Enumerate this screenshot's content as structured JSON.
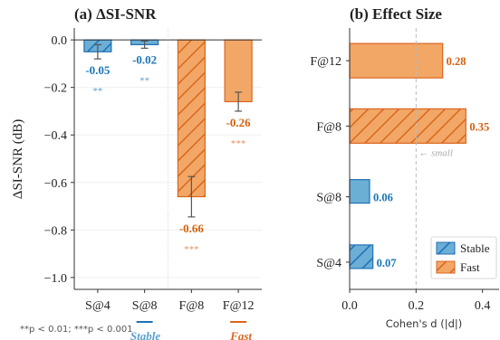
{
  "colors": {
    "stable_fill": "#6baed6",
    "stable_edge": "#2171b5",
    "stable_text": "#1a75b8",
    "stable_sig": "#5aa0d0",
    "fast_fill": "#f2a766",
    "fast_edge": "#d9661f",
    "fast_text": "#d35f0c",
    "fast_sig": "#e8915a",
    "annotation_gray": "#aaaaaa"
  },
  "chart_data": [
    {
      "type": "bar",
      "panel": "(a)",
      "title": "(a)  ΔSI-SNR",
      "xlabel": "",
      "ylabel": "ΔSI-SNR (dB)",
      "ylim": [
        -1.05,
        0.05
      ],
      "yticks": [
        0.0,
        -0.2,
        -0.4,
        -0.6,
        -0.8,
        -1.0
      ],
      "ytick_labels": [
        "0.0",
        "−0.2",
        "−0.4",
        "−0.6",
        "−0.8",
        "−1.0"
      ],
      "categories": [
        "S@4",
        "S@8",
        "F@8",
        "F@12"
      ],
      "values": [
        -0.05,
        -0.02,
        -0.66,
        -0.26
      ],
      "errors": [
        0.03,
        0.015,
        0.085,
        0.04
      ],
      "value_labels": [
        "-0.05",
        "-0.02",
        "-0.66",
        "-0.26"
      ],
      "significance": [
        "**",
        "**",
        "***",
        "***"
      ],
      "groups": [
        "stable",
        "stable",
        "fast",
        "fast"
      ],
      "hatched": [
        true,
        false,
        true,
        false
      ],
      "group_labels": [
        "Stable",
        "Fast"
      ],
      "footnote": "**p < 0.01; ***p < 0.001"
    },
    {
      "type": "bar",
      "orientation": "horizontal",
      "panel": "(b)",
      "title": "(b)  Effect Size",
      "xlabel": "Cohen's d (|d|)",
      "ylabel": "",
      "xlim": [
        0.0,
        0.45
      ],
      "xticks": [
        0.0,
        0.2,
        0.4
      ],
      "xtick_labels": [
        "0.0",
        "0.2",
        "0.4"
      ],
      "categories": [
        "F@12",
        "F@8",
        "S@8",
        "S@4"
      ],
      "values": [
        0.28,
        0.35,
        0.06,
        0.07
      ],
      "value_labels": [
        "0.28",
        "0.35",
        "0.06",
        "0.07"
      ],
      "groups": [
        "fast",
        "fast",
        "stable",
        "stable"
      ],
      "hatched": [
        false,
        true,
        false,
        true
      ],
      "threshold": 0.2,
      "threshold_label": "← small",
      "legend": [
        "Stable",
        "Fast"
      ],
      "legend_position": "bottom-right"
    }
  ]
}
